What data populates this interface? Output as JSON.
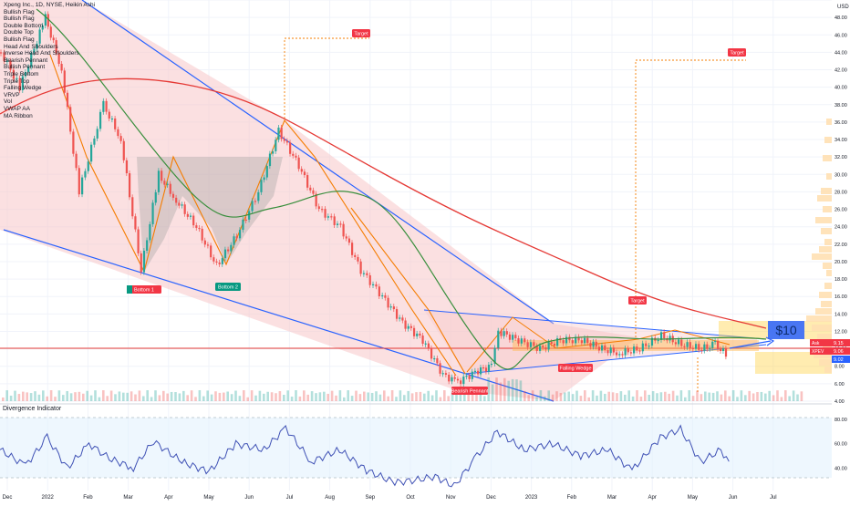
{
  "header": {
    "symbol_line": "Xpeng Inc., 1D, NYSE, Heikin Ashi",
    "currency": "USD"
  },
  "legend_items": [
    "Bullish Flag",
    "Bullish Flag",
    "Double Bottom",
    "Double Top",
    "Bullish Flag",
    "Head And Shoulders",
    "Inverse Head And Shoulders",
    "Bearish Pennant",
    "Bullish Pennant",
    "Triple Bottom",
    "Triple Top",
    "Falling Wedge",
    "VRVP",
    "Vol",
    "VWAP AA",
    "MA Ribbon"
  ],
  "annotations": {
    "target_1": "Target",
    "target_2": "Target",
    "target_3": "Target",
    "bottom_1": "Bottom 1",
    "bottom_2": "Bottom 2",
    "bearish_pennant": "Bearish Pennant",
    "falling_wedge": "Falling Wedge",
    "price_label": "$10"
  },
  "price_tags": {
    "ask": "9.15",
    "last": "9.06",
    "bid": "9.02",
    "xpev": "XPEV",
    "ask_tag": "Ask"
  },
  "indicator": {
    "title": "Divergence Indicator"
  },
  "colors": {
    "up": "#26a69a",
    "down": "#ef5350",
    "wedge_fill": "#f8c7c9",
    "wedge_line": "#2962ff",
    "ma_red": "#e53935",
    "ma_green": "#388e3c",
    "pattern": "#f57c00",
    "osc": "#3f51b5",
    "tag_red": "#f23645",
    "tag_green": "#089981",
    "price_box": "#2962ff"
  },
  "chart_data": {
    "type": "candlestick",
    "title": "Xpeng Inc., 1D, NYSE, Heikin Ashi",
    "currency": "USD",
    "y_ticks": [
      4,
      6,
      8,
      10,
      12,
      14,
      16,
      18,
      20,
      22,
      24,
      26,
      28,
      30,
      32,
      34,
      36,
      38,
      40,
      42,
      44,
      46,
      48,
      50
    ],
    "x_ticks": [
      "Dec",
      "2022",
      "Feb",
      "Mar",
      "Apr",
      "May",
      "Jun",
      "Jul",
      "Aug",
      "Sep",
      "Oct",
      "Nov",
      "Dec",
      "2023",
      "Feb",
      "Mar",
      "Apr",
      "May",
      "Jun",
      "Jul"
    ],
    "close_path": [
      [
        "2021-12-01",
        44
      ],
      [
        "2021-12-15",
        40
      ],
      [
        "2022-01-03",
        48
      ],
      [
        "2022-01-15",
        42
      ],
      [
        "2022-01-28",
        28
      ],
      [
        "2022-02-15",
        38
      ],
      [
        "2022-02-28",
        34
      ],
      [
        "2022-03-15",
        19
      ],
      [
        "2022-03-28",
        30
      ],
      [
        "2022-04-10",
        27
      ],
      [
        "2022-04-25",
        24
      ],
      [
        "2022-05-10",
        19.5
      ],
      [
        "2022-05-25",
        23
      ],
      [
        "2022-06-10",
        28
      ],
      [
        "2022-06-25",
        35
      ],
      [
        "2022-07-10",
        31
      ],
      [
        "2022-07-25",
        26
      ],
      [
        "2022-08-10",
        24
      ],
      [
        "2022-08-25",
        19
      ],
      [
        "2022-09-10",
        16
      ],
      [
        "2022-09-25",
        13
      ],
      [
        "2022-10-10",
        11
      ],
      [
        "2022-10-25",
        7
      ],
      [
        "2022-11-05",
        6.2
      ],
      [
        "2022-11-20",
        7.5
      ],
      [
        "2022-11-30",
        8
      ],
      [
        "2022-12-05",
        12
      ],
      [
        "2022-12-20",
        11
      ],
      [
        "2023-01-05",
        10
      ],
      [
        "2023-01-20",
        11
      ],
      [
        "2023-02-05",
        11
      ],
      [
        "2023-02-20",
        10
      ],
      [
        "2023-03-05",
        9.5
      ],
      [
        "2023-03-20",
        10
      ],
      [
        "2023-04-05",
        11.5
      ],
      [
        "2023-04-20",
        10.5
      ],
      [
        "2023-05-05",
        10
      ],
      [
        "2023-05-15",
        10.5
      ],
      [
        "2023-05-25",
        9.06
      ]
    ],
    "indicator_ticks": [
      20,
      40,
      60,
      80
    ],
    "indicator_path": [
      [
        "2021-12-01",
        55
      ],
      [
        "2021-12-20",
        42
      ],
      [
        "2022-01-05",
        65
      ],
      [
        "2022-01-20",
        40
      ],
      [
        "2022-02-05",
        60
      ],
      [
        "2022-02-20",
        48
      ],
      [
        "2022-03-10",
        40
      ],
      [
        "2022-03-25",
        62
      ],
      [
        "2022-04-15",
        45
      ],
      [
        "2022-05-05",
        37
      ],
      [
        "2022-05-25",
        60
      ],
      [
        "2022-06-15",
        55
      ],
      [
        "2022-07-01",
        73
      ],
      [
        "2022-07-20",
        45
      ],
      [
        "2022-08-10",
        55
      ],
      [
        "2022-08-30",
        38
      ],
      [
        "2022-09-20",
        28
      ],
      [
        "2022-10-05",
        30
      ],
      [
        "2022-10-20",
        33
      ],
      [
        "2022-11-03",
        25
      ],
      [
        "2022-11-20",
        50
      ],
      [
        "2022-12-05",
        70
      ],
      [
        "2022-12-25",
        55
      ],
      [
        "2023-01-15",
        60
      ],
      [
        "2023-02-05",
        50
      ],
      [
        "2023-02-25",
        55
      ],
      [
        "2023-03-15",
        38
      ],
      [
        "2023-04-05",
        65
      ],
      [
        "2023-04-20",
        72
      ],
      [
        "2023-05-05",
        45
      ],
      [
        "2023-05-20",
        55
      ],
      [
        "2023-05-28",
        40
      ]
    ],
    "vwap_note": "VWAP",
    "reference_price": 10
  }
}
